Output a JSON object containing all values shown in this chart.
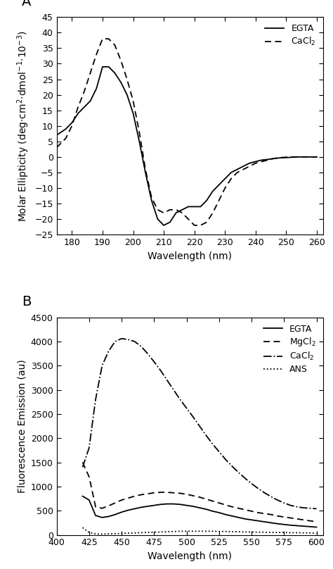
{
  "panel_A": {
    "label": "A",
    "xlabel": "Wavelength (nm)",
    "ylabel": "Molar Ellipticity (deg·cm²·dmol⁻¹·×10⁻³)",
    "xlim": [
      175,
      262
    ],
    "ylim": [
      -25,
      45
    ],
    "xticks": [
      180,
      190,
      200,
      210,
      220,
      230,
      240,
      250,
      260
    ],
    "yticks": [
      -25,
      -20,
      -15,
      -10,
      -5,
      0,
      5,
      10,
      15,
      20,
      25,
      30,
      35,
      40,
      45
    ],
    "egta_x": [
      175,
      178,
      180,
      182,
      184,
      186,
      188,
      190,
      192,
      194,
      196,
      198,
      200,
      202,
      204,
      206,
      208,
      210,
      212,
      214,
      216,
      218,
      220,
      222,
      224,
      226,
      228,
      230,
      232,
      234,
      236,
      238,
      240,
      242,
      244,
      246,
      248,
      250,
      252,
      254,
      256,
      258,
      260
    ],
    "egta_y": [
      7,
      9,
      11,
      14,
      16,
      18,
      22,
      29,
      29,
      27,
      24,
      20,
      14,
      5,
      -5,
      -14,
      -20,
      -22,
      -21,
      -18,
      -17,
      -16,
      -16,
      -16,
      -14,
      -11,
      -9,
      -7,
      -5,
      -4,
      -3,
      -2,
      -1.5,
      -1,
      -0.8,
      -0.5,
      -0.3,
      -0.2,
      -0.1,
      0,
      0,
      0,
      0
    ],
    "cacl2_x": [
      175,
      178,
      180,
      182,
      184,
      186,
      188,
      190,
      192,
      194,
      196,
      198,
      200,
      202,
      204,
      206,
      208,
      210,
      212,
      214,
      216,
      218,
      220,
      222,
      224,
      226,
      228,
      230,
      232,
      234,
      236,
      238,
      240,
      242,
      244,
      246,
      248,
      250,
      252,
      254,
      256,
      258,
      260
    ],
    "cacl2_y": [
      3,
      6,
      10,
      16,
      21,
      27,
      33,
      38,
      38,
      36,
      31,
      25,
      18,
      8,
      -4,
      -13,
      -17,
      -18,
      -17,
      -17,
      -18,
      -20,
      -22,
      -22,
      -21,
      -18,
      -14,
      -10,
      -7,
      -5,
      -4,
      -3,
      -2,
      -1.5,
      -1,
      -0.5,
      -0.2,
      -0.1,
      0,
      0,
      0,
      0,
      0
    ],
    "egta_lw": 1.3,
    "cacl2_lw": 1.3
  },
  "panel_B": {
    "label": "B",
    "xlabel": "Wavelength (nm)",
    "ylabel": "Fluorescence Emission (au)",
    "xlim": [
      400,
      605
    ],
    "ylim": [
      0,
      4500
    ],
    "xticks": [
      400,
      425,
      450,
      475,
      500,
      525,
      550,
      575,
      600
    ],
    "yticks": [
      0,
      500,
      1000,
      1500,
      2000,
      2500,
      3000,
      3500,
      4000,
      4500
    ],
    "egta_x": [
      420,
      425,
      430,
      435,
      440,
      445,
      450,
      455,
      460,
      465,
      470,
      475,
      480,
      485,
      490,
      495,
      500,
      505,
      510,
      515,
      520,
      525,
      530,
      535,
      540,
      545,
      550,
      555,
      560,
      565,
      570,
      575,
      580,
      585,
      590,
      595,
      600
    ],
    "egta_y": [
      800,
      720,
      400,
      360,
      380,
      420,
      470,
      510,
      540,
      570,
      590,
      610,
      630,
      640,
      640,
      630,
      610,
      590,
      560,
      530,
      490,
      460,
      420,
      390,
      360,
      330,
      310,
      290,
      270,
      250,
      230,
      215,
      200,
      190,
      180,
      170,
      160
    ],
    "mgcl2_x": [
      420,
      425,
      430,
      435,
      440,
      445,
      450,
      455,
      460,
      465,
      470,
      475,
      480,
      485,
      490,
      495,
      500,
      505,
      510,
      515,
      520,
      525,
      530,
      535,
      540,
      545,
      550,
      555,
      560,
      565,
      570,
      575,
      580,
      585,
      590,
      595,
      600
    ],
    "mgcl2_y": [
      1500,
      1200,
      580,
      550,
      600,
      660,
      720,
      760,
      800,
      830,
      850,
      870,
      880,
      880,
      870,
      860,
      840,
      810,
      780,
      740,
      700,
      660,
      620,
      580,
      550,
      520,
      490,
      460,
      440,
      420,
      390,
      370,
      350,
      330,
      310,
      290,
      270
    ],
    "cacl2_x": [
      420,
      425,
      430,
      435,
      440,
      445,
      450,
      455,
      460,
      465,
      470,
      475,
      480,
      485,
      490,
      495,
      500,
      505,
      510,
      515,
      520,
      525,
      530,
      535,
      540,
      545,
      550,
      555,
      560,
      565,
      570,
      575,
      580,
      585,
      590,
      595,
      600
    ],
    "cacl2_y": [
      1400,
      1800,
      2800,
      3500,
      3800,
      4000,
      4060,
      4040,
      4000,
      3900,
      3750,
      3580,
      3400,
      3200,
      3000,
      2800,
      2620,
      2440,
      2250,
      2060,
      1880,
      1720,
      1560,
      1420,
      1290,
      1170,
      1060,
      960,
      870,
      790,
      720,
      660,
      610,
      580,
      560,
      550,
      540
    ],
    "ans_x": [
      420,
      425,
      430,
      435,
      440,
      445,
      450,
      455,
      460,
      465,
      470,
      475,
      480,
      485,
      490,
      495,
      500,
      505,
      510,
      515,
      520,
      525,
      530,
      535,
      540,
      545,
      550,
      555,
      560,
      565,
      570,
      575,
      580,
      585,
      590,
      595,
      600
    ],
    "ans_y": [
      150,
      50,
      20,
      15,
      20,
      25,
      30,
      35,
      40,
      45,
      50,
      55,
      60,
      65,
      70,
      75,
      75,
      75,
      75,
      75,
      75,
      70,
      70,
      65,
      65,
      60,
      60,
      55,
      55,
      50,
      50,
      50,
      45,
      45,
      40,
      40,
      35
    ],
    "egta_lw": 1.3,
    "mgcl2_lw": 1.3,
    "cacl2_lw": 1.3,
    "ans_lw": 1.3
  },
  "fig_bgcolor": "#ffffff",
  "panel_label_fontsize": 14,
  "axis_label_fontsize": 10,
  "tick_label_fontsize": 9,
  "legend_fontsize": 9,
  "linecolor": "#000000"
}
